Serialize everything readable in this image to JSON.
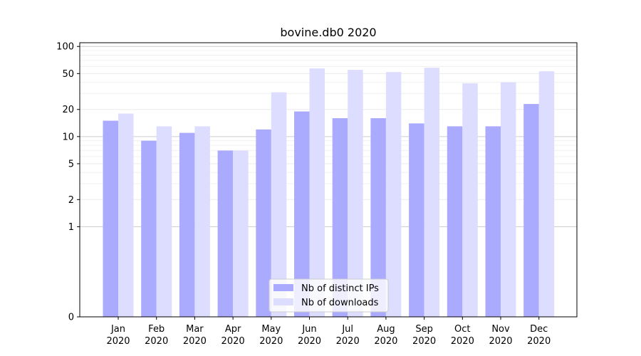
{
  "chart_data": {
    "type": "bar",
    "title": "bovine.db0 2020",
    "xlabel": "",
    "ylabel": "",
    "yscale": "symlog",
    "ylim": [
      0,
      110
    ],
    "yticks": [
      0,
      1,
      2,
      5,
      10,
      20,
      50,
      100
    ],
    "grid": true,
    "legend_position": "lower-center",
    "categories": [
      [
        "Jan",
        "2020"
      ],
      [
        "Feb",
        "2020"
      ],
      [
        "Mar",
        "2020"
      ],
      [
        "Apr",
        "2020"
      ],
      [
        "May",
        "2020"
      ],
      [
        "Jun",
        "2020"
      ],
      [
        "Jul",
        "2020"
      ],
      [
        "Aug",
        "2020"
      ],
      [
        "Sep",
        "2020"
      ],
      [
        "Oct",
        "2020"
      ],
      [
        "Nov",
        "2020"
      ],
      [
        "Dec",
        "2020"
      ]
    ],
    "series": [
      {
        "name": "Nb of distinct IPs",
        "color": "#aaaaff",
        "values": [
          15,
          9,
          11,
          7,
          12,
          19,
          16,
          16,
          14,
          13,
          13,
          23
        ]
      },
      {
        "name": "Nb of downloads",
        "color": "#ddddff",
        "values": [
          18,
          13,
          13,
          7,
          31,
          57,
          55,
          52,
          58,
          39,
          40,
          53
        ]
      }
    ]
  }
}
